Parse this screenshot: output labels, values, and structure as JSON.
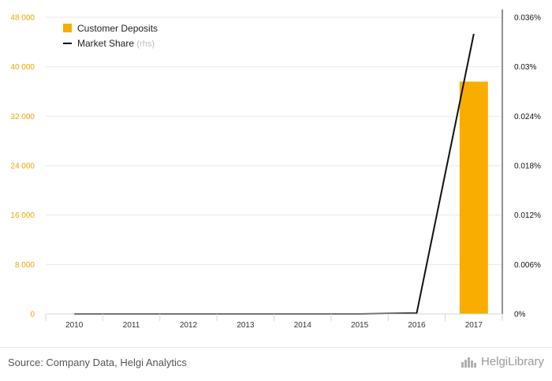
{
  "chart_data": {
    "type": "bar",
    "categories": [
      "2010",
      "2011",
      "2012",
      "2013",
      "2014",
      "2015",
      "2016",
      "2017"
    ],
    "series": [
      {
        "name": "Customer Deposits",
        "kind": "bar",
        "axis": "left",
        "color": "#f8ad00",
        "values": [
          0,
          0,
          0,
          0,
          0,
          0,
          0,
          37600
        ]
      },
      {
        "name": "Market Share",
        "suffix": "(rhs)",
        "kind": "line",
        "axis": "right",
        "color": "#111111",
        "values": [
          0,
          0,
          0,
          0,
          0,
          0,
          0.0001,
          0.034
        ]
      }
    ],
    "y_left": {
      "ylim": [
        0,
        48000
      ],
      "ticks": [
        0,
        8000,
        16000,
        24000,
        32000,
        40000,
        48000
      ],
      "tick_labels": [
        "0",
        "8 000",
        "16 000",
        "24 000",
        "32 000",
        "40 000",
        "48 000"
      ],
      "label_color": "#f0a500"
    },
    "y_right": {
      "ylim": [
        0,
        0.036
      ],
      "ticks": [
        0,
        0.006,
        0.012,
        0.018,
        0.024,
        0.03,
        0.036
      ],
      "tick_labels": [
        "0%",
        "0.006%",
        "0.012%",
        "0.018%",
        "0.024%",
        "0.03%",
        "0.036%"
      ]
    },
    "grid": true,
    "legend_position": "top-left"
  },
  "footer": {
    "source": "Source: Company Data, Helgi Analytics",
    "brand": "HelgiLibrary",
    "brand_icon": "helgi-library-logo-icon"
  }
}
